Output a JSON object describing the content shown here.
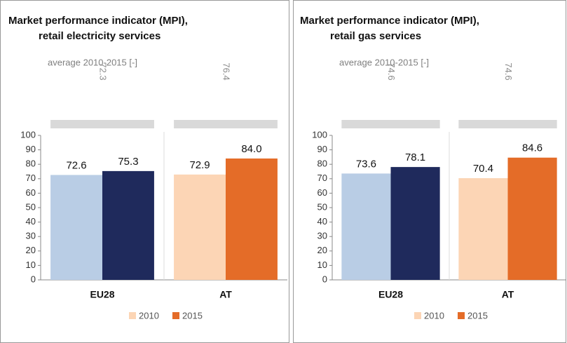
{
  "chart_data": [
    {
      "type": "bar",
      "title": [
        "Market performance indicator (MPI),",
        "retail electricity services"
      ],
      "average_label": "average 2010-2015 [-]",
      "categories": [
        "EU28",
        "AT"
      ],
      "averages": [
        72.3,
        76.4
      ],
      "series": [
        {
          "name": "2010",
          "colors": [
            "#b9cde5",
            "#fcd5b5"
          ],
          "values": [
            72.6,
            72.9
          ],
          "value_labels": [
            "72.6",
            "72.9"
          ]
        },
        {
          "name": "2015",
          "colors": [
            "#1f2a5c",
            "#e46c28"
          ],
          "values": [
            75.3,
            84.0
          ],
          "value_labels": [
            "75.3",
            "84.0"
          ]
        }
      ],
      "ylim": [
        0,
        100
      ],
      "yticks": [
        0,
        10,
        20,
        30,
        40,
        50,
        60,
        70,
        80,
        90,
        100
      ]
    },
    {
      "type": "bar",
      "title": [
        "Market performance indicator (MPI),",
        "retail gas services"
      ],
      "average_label": "average 2010-2015 [-]",
      "categories": [
        "EU28",
        "AT"
      ],
      "averages": [
        74.6,
        74.6
      ],
      "series": [
        {
          "name": "2010",
          "colors": [
            "#b9cde5",
            "#fcd5b5"
          ],
          "values": [
            73.6,
            70.4
          ],
          "value_labels": [
            "73.6",
            "70.4"
          ]
        },
        {
          "name": "2015",
          "colors": [
            "#1f2a5c",
            "#e46c28"
          ],
          "values": [
            78.1,
            84.6
          ],
          "value_labels": [
            "78.1",
            "84.6"
          ]
        }
      ],
      "ylim": [
        0,
        100
      ],
      "yticks": [
        0,
        10,
        20,
        30,
        40,
        50,
        60,
        70,
        80,
        90,
        100
      ]
    }
  ]
}
